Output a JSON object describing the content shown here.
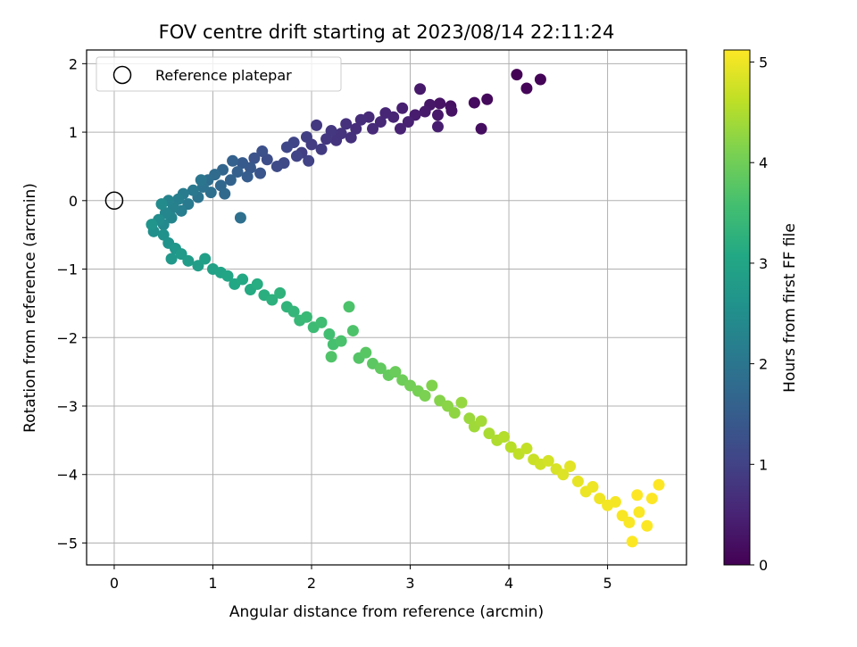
{
  "chart_data": {
    "type": "scatter",
    "title": "FOV centre drift starting at 2023/08/14 22:11:24",
    "xlabel": "Angular distance from reference (arcmin)",
    "ylabel": "Rotation from reference (arcmin)",
    "xlim": [
      -0.28,
      5.8
    ],
    "ylim": [
      -5.32,
      2.2
    ],
    "xticks": [
      0,
      1,
      2,
      3,
      4,
      5
    ],
    "yticks": [
      -5,
      -4,
      -3,
      -2,
      -1,
      0,
      1,
      2
    ],
    "xtick_labels": [
      "0",
      "1",
      "2",
      "3",
      "4",
      "5"
    ],
    "ytick_labels": [
      "−5",
      "−4",
      "−3",
      "−2",
      "−1",
      "0",
      "1",
      "2"
    ],
    "grid": true,
    "colormap": "viridis",
    "colorbar": {
      "label": "Hours from first FF file",
      "range": [
        0,
        5.12
      ],
      "ticks": [
        0,
        1,
        2,
        3,
        4,
        5
      ],
      "tick_labels": [
        "0",
        "1",
        "2",
        "3",
        "4",
        "5"
      ]
    },
    "legend": {
      "placement": "top-left",
      "entries": [
        {
          "label": "Reference platepar",
          "marker": "open-circle"
        }
      ]
    },
    "reference_point": {
      "x": 0,
      "y": 0
    },
    "points": [
      {
        "x": 4.08,
        "y": 1.84,
        "t": 0.02
      },
      {
        "x": 4.32,
        "y": 1.77,
        "t": 0.05
      },
      {
        "x": 4.18,
        "y": 1.64,
        "t": 0.07
      },
      {
        "x": 3.78,
        "y": 1.48,
        "t": 0.12
      },
      {
        "x": 3.65,
        "y": 1.43,
        "t": 0.15
      },
      {
        "x": 3.72,
        "y": 1.05,
        "t": 0.18
      },
      {
        "x": 3.41,
        "y": 1.38,
        "t": 0.22
      },
      {
        "x": 3.42,
        "y": 1.31,
        "t": 0.25
      },
      {
        "x": 3.3,
        "y": 1.42,
        "t": 0.27
      },
      {
        "x": 3.2,
        "y": 1.4,
        "t": 0.3
      },
      {
        "x": 3.28,
        "y": 1.25,
        "t": 0.33
      },
      {
        "x": 3.1,
        "y": 1.63,
        "t": 0.35
      },
      {
        "x": 3.15,
        "y": 1.3,
        "t": 0.37
      },
      {
        "x": 3.05,
        "y": 1.25,
        "t": 0.4
      },
      {
        "x": 3.28,
        "y": 1.08,
        "t": 0.42
      },
      {
        "x": 2.92,
        "y": 1.35,
        "t": 0.45
      },
      {
        "x": 2.98,
        "y": 1.15,
        "t": 0.47
      },
      {
        "x": 2.9,
        "y": 1.05,
        "t": 0.5
      },
      {
        "x": 2.83,
        "y": 1.22,
        "t": 0.52
      },
      {
        "x": 2.75,
        "y": 1.28,
        "t": 0.55
      },
      {
        "x": 2.7,
        "y": 1.15,
        "t": 0.57
      },
      {
        "x": 2.62,
        "y": 1.05,
        "t": 0.6
      },
      {
        "x": 2.58,
        "y": 1.22,
        "t": 0.62
      },
      {
        "x": 2.5,
        "y": 1.18,
        "t": 0.65
      },
      {
        "x": 2.45,
        "y": 1.05,
        "t": 0.67
      },
      {
        "x": 2.4,
        "y": 0.92,
        "t": 0.7
      },
      {
        "x": 2.35,
        "y": 1.12,
        "t": 0.72
      },
      {
        "x": 2.3,
        "y": 0.98,
        "t": 0.75
      },
      {
        "x": 2.25,
        "y": 0.88,
        "t": 0.77
      },
      {
        "x": 2.2,
        "y": 1.02,
        "t": 0.8
      },
      {
        "x": 2.15,
        "y": 0.9,
        "t": 0.82
      },
      {
        "x": 2.05,
        "y": 1.1,
        "t": 0.85
      },
      {
        "x": 2.1,
        "y": 0.75,
        "t": 0.88
      },
      {
        "x": 2.0,
        "y": 0.82,
        "t": 0.9
      },
      {
        "x": 1.95,
        "y": 0.93,
        "t": 0.92
      },
      {
        "x": 1.9,
        "y": 0.7,
        "t": 0.95
      },
      {
        "x": 1.97,
        "y": 0.58,
        "t": 1.0
      },
      {
        "x": 1.85,
        "y": 0.65,
        "t": 1.02
      },
      {
        "x": 1.82,
        "y": 0.85,
        "t": 1.05
      },
      {
        "x": 1.75,
        "y": 0.78,
        "t": 1.08
      },
      {
        "x": 1.72,
        "y": 0.55,
        "t": 1.12
      },
      {
        "x": 1.65,
        "y": 0.5,
        "t": 1.15
      },
      {
        "x": 1.55,
        "y": 0.6,
        "t": 1.2
      },
      {
        "x": 1.5,
        "y": 0.72,
        "t": 1.25
      },
      {
        "x": 1.42,
        "y": 0.62,
        "t": 1.3
      },
      {
        "x": 1.48,
        "y": 0.4,
        "t": 1.35
      },
      {
        "x": 1.38,
        "y": 0.48,
        "t": 1.4
      },
      {
        "x": 1.3,
        "y": 0.55,
        "t": 1.45
      },
      {
        "x": 1.35,
        "y": 0.35,
        "t": 1.5
      },
      {
        "x": 1.25,
        "y": 0.42,
        "t": 1.55
      },
      {
        "x": 1.2,
        "y": 0.58,
        "t": 1.58
      },
      {
        "x": 1.18,
        "y": 0.3,
        "t": 1.62
      },
      {
        "x": 1.1,
        "y": 0.45,
        "t": 1.66
      },
      {
        "x": 1.08,
        "y": 0.22,
        "t": 1.7
      },
      {
        "x": 1.12,
        "y": 0.1,
        "t": 1.74
      },
      {
        "x": 1.02,
        "y": 0.38,
        "t": 1.78
      },
      {
        "x": 0.95,
        "y": 0.3,
        "t": 1.82
      },
      {
        "x": 0.98,
        "y": 0.12,
        "t": 1.86
      },
      {
        "x": 1.28,
        "y": -0.25,
        "t": 1.88
      },
      {
        "x": 0.9,
        "y": 0.2,
        "t": 1.92
      },
      {
        "x": 0.85,
        "y": 0.05,
        "t": 1.96
      },
      {
        "x": 0.88,
        "y": 0.3,
        "t": 2.0
      },
      {
        "x": 0.8,
        "y": 0.15,
        "t": 2.04
      },
      {
        "x": 0.75,
        "y": -0.05,
        "t": 2.08
      },
      {
        "x": 0.7,
        "y": 0.1,
        "t": 2.12
      },
      {
        "x": 0.68,
        "y": -0.15,
        "t": 2.16
      },
      {
        "x": 0.65,
        "y": 0.02,
        "t": 2.2
      },
      {
        "x": 0.6,
        "y": -0.1,
        "t": 2.24
      },
      {
        "x": 0.55,
        "y": 0.0,
        "t": 2.28
      },
      {
        "x": 0.58,
        "y": -0.25,
        "t": 2.32
      },
      {
        "x": 0.52,
        "y": -0.18,
        "t": 2.36
      },
      {
        "x": 0.5,
        "y": -0.35,
        "t": 2.4
      },
      {
        "x": 0.48,
        "y": -0.05,
        "t": 2.44
      },
      {
        "x": 0.45,
        "y": -0.28,
        "t": 2.48
      },
      {
        "x": 0.4,
        "y": -0.45,
        "t": 2.52
      },
      {
        "x": 0.5,
        "y": -0.5,
        "t": 2.56
      },
      {
        "x": 0.55,
        "y": -0.62,
        "t": 2.6
      },
      {
        "x": 0.38,
        "y": -0.35,
        "t": 2.64
      },
      {
        "x": 0.62,
        "y": -0.7,
        "t": 2.68
      },
      {
        "x": 0.58,
        "y": -0.85,
        "t": 2.72
      },
      {
        "x": 0.68,
        "y": -0.78,
        "t": 2.76
      },
      {
        "x": 0.75,
        "y": -0.88,
        "t": 2.8
      },
      {
        "x": 0.85,
        "y": -0.95,
        "t": 2.84
      },
      {
        "x": 0.92,
        "y": -0.85,
        "t": 2.88
      },
      {
        "x": 1.0,
        "y": -1.0,
        "t": 2.92
      },
      {
        "x": 1.08,
        "y": -1.05,
        "t": 2.96
      },
      {
        "x": 1.15,
        "y": -1.1,
        "t": 3.0
      },
      {
        "x": 1.22,
        "y": -1.22,
        "t": 3.04
      },
      {
        "x": 1.3,
        "y": -1.15,
        "t": 3.08
      },
      {
        "x": 1.38,
        "y": -1.3,
        "t": 3.12
      },
      {
        "x": 1.45,
        "y": -1.22,
        "t": 3.16
      },
      {
        "x": 1.52,
        "y": -1.38,
        "t": 3.2
      },
      {
        "x": 1.6,
        "y": -1.45,
        "t": 3.24
      },
      {
        "x": 1.68,
        "y": -1.35,
        "t": 3.28
      },
      {
        "x": 1.75,
        "y": -1.55,
        "t": 3.32
      },
      {
        "x": 1.82,
        "y": -1.62,
        "t": 3.36
      },
      {
        "x": 1.88,
        "y": -1.75,
        "t": 3.4
      },
      {
        "x": 1.95,
        "y": -1.7,
        "t": 3.44
      },
      {
        "x": 2.02,
        "y": -1.85,
        "t": 3.48
      },
      {
        "x": 2.1,
        "y": -1.78,
        "t": 3.52
      },
      {
        "x": 2.18,
        "y": -1.95,
        "t": 3.56
      },
      {
        "x": 2.22,
        "y": -2.1,
        "t": 3.6
      },
      {
        "x": 2.3,
        "y": -2.05,
        "t": 3.64
      },
      {
        "x": 2.38,
        "y": -1.55,
        "t": 3.66
      },
      {
        "x": 2.42,
        "y": -1.9,
        "t": 3.68
      },
      {
        "x": 2.2,
        "y": -2.28,
        "t": 3.7
      },
      {
        "x": 2.48,
        "y": -2.3,
        "t": 3.74
      },
      {
        "x": 2.55,
        "y": -2.22,
        "t": 3.78
      },
      {
        "x": 2.62,
        "y": -2.38,
        "t": 3.82
      },
      {
        "x": 2.7,
        "y": -2.45,
        "t": 3.86
      },
      {
        "x": 2.78,
        "y": -2.55,
        "t": 3.9
      },
      {
        "x": 2.85,
        "y": -2.5,
        "t": 3.94
      },
      {
        "x": 2.92,
        "y": -2.62,
        "t": 3.98
      },
      {
        "x": 3.0,
        "y": -2.7,
        "t": 4.02
      },
      {
        "x": 3.08,
        "y": -2.78,
        "t": 4.06
      },
      {
        "x": 3.15,
        "y": -2.85,
        "t": 4.1
      },
      {
        "x": 3.22,
        "y": -2.7,
        "t": 4.14
      },
      {
        "x": 3.3,
        "y": -2.92,
        "t": 4.18
      },
      {
        "x": 3.38,
        "y": -3.0,
        "t": 4.22
      },
      {
        "x": 3.45,
        "y": -3.1,
        "t": 4.26
      },
      {
        "x": 3.52,
        "y": -2.95,
        "t": 4.3
      },
      {
        "x": 3.6,
        "y": -3.18,
        "t": 4.34
      },
      {
        "x": 3.65,
        "y": -3.3,
        "t": 4.38
      },
      {
        "x": 3.72,
        "y": -3.22,
        "t": 4.42
      },
      {
        "x": 3.8,
        "y": -3.4,
        "t": 4.46
      },
      {
        "x": 3.88,
        "y": -3.5,
        "t": 4.5
      },
      {
        "x": 3.95,
        "y": -3.45,
        "t": 4.54
      },
      {
        "x": 4.02,
        "y": -3.6,
        "t": 4.58
      },
      {
        "x": 4.1,
        "y": -3.7,
        "t": 4.62
      },
      {
        "x": 4.18,
        "y": -3.62,
        "t": 4.66
      },
      {
        "x": 4.25,
        "y": -3.78,
        "t": 4.7
      },
      {
        "x": 4.32,
        "y": -3.85,
        "t": 4.74
      },
      {
        "x": 4.4,
        "y": -3.8,
        "t": 4.78
      },
      {
        "x": 4.48,
        "y": -3.92,
        "t": 4.82
      },
      {
        "x": 4.55,
        "y": -4.0,
        "t": 4.86
      },
      {
        "x": 4.62,
        "y": -3.88,
        "t": 4.9
      },
      {
        "x": 4.7,
        "y": -4.1,
        "t": 4.94
      },
      {
        "x": 4.78,
        "y": -4.25,
        "t": 4.98
      },
      {
        "x": 4.85,
        "y": -4.18,
        "t": 5.0
      },
      {
        "x": 4.92,
        "y": -4.35,
        "t": 5.02
      },
      {
        "x": 5.0,
        "y": -4.45,
        "t": 5.04
      },
      {
        "x": 5.08,
        "y": -4.4,
        "t": 5.06
      },
      {
        "x": 5.15,
        "y": -4.6,
        "t": 5.08
      },
      {
        "x": 5.22,
        "y": -4.7,
        "t": 5.09
      },
      {
        "x": 5.32,
        "y": -4.55,
        "t": 5.1
      },
      {
        "x": 5.4,
        "y": -4.75,
        "t": 5.11
      },
      {
        "x": 5.25,
        "y": -4.98,
        "t": 5.11
      },
      {
        "x": 5.45,
        "y": -4.35,
        "t": 5.12
      },
      {
        "x": 5.52,
        "y": -4.15,
        "t": 5.12
      },
      {
        "x": 5.3,
        "y": -4.3,
        "t": 5.12
      }
    ]
  }
}
